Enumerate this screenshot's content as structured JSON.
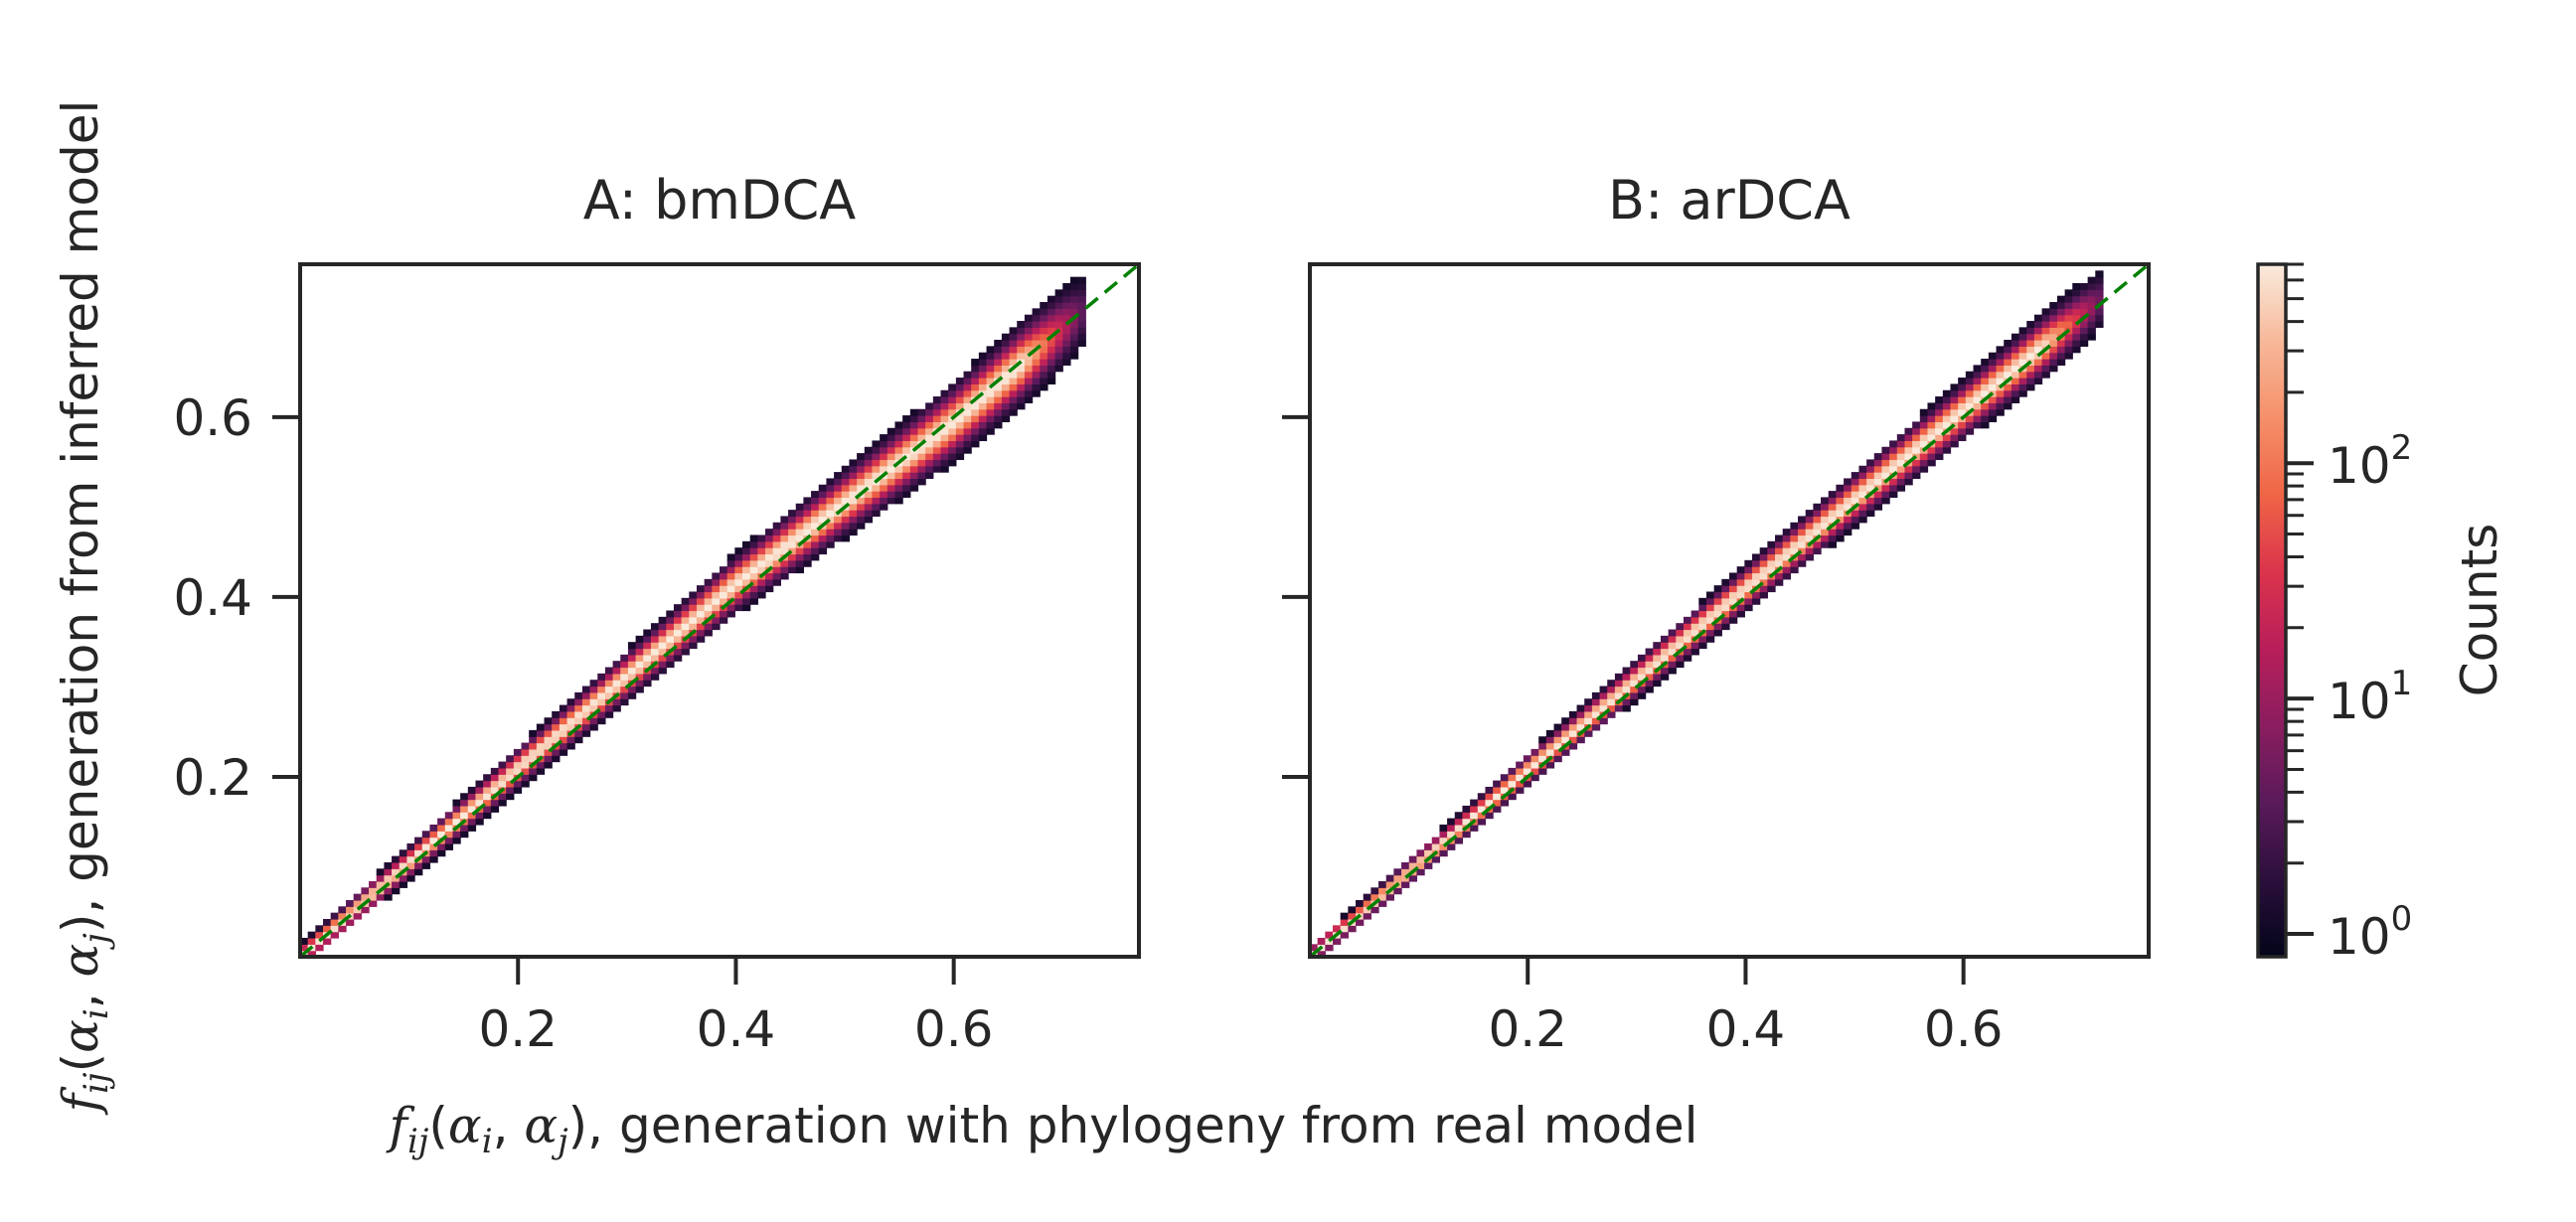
{
  "chart_data": [
    {
      "type": "heatmap",
      "title": "A: bmDCA",
      "xlim": [
        0.0,
        0.77
      ],
      "ylim": [
        0.0,
        0.77
      ],
      "x_ticks": [
        0.2,
        0.4,
        0.6
      ],
      "y_ticks": [
        0.2,
        0.4,
        0.6
      ],
      "x_tick_labels": [
        "0.2",
        "0.4",
        "0.6"
      ],
      "y_tick_labels": [
        "0.2",
        "0.4",
        "0.6"
      ],
      "diagonal": {
        "x": [
          0.0,
          0.77
        ],
        "y": [
          0.0,
          0.77
        ],
        "color": "#008000",
        "style": "dashed"
      },
      "density_band": {
        "extent": [
          0.0,
          0.72
        ],
        "half_width": [
          0.012,
          0.028,
          0.045
        ],
        "offset": [
          [
            0.0,
            0.0
          ],
          [
            0.2,
            0.01
          ],
          [
            0.4,
            0.015
          ],
          [
            0.6,
            -0.005
          ],
          [
            0.72,
            0.0
          ]
        ]
      }
    },
    {
      "type": "heatmap",
      "title": "B: arDCA",
      "xlim": [
        0.0,
        0.77
      ],
      "ylim": [
        0.0,
        0.77
      ],
      "x_ticks": [
        0.2,
        0.4,
        0.6
      ],
      "y_ticks": [
        0.2,
        0.4,
        0.6
      ],
      "x_tick_labels": [
        "0.2",
        "0.4",
        "0.6"
      ],
      "y_tick_labels": [
        "",
        "",
        ""
      ],
      "diagonal": {
        "x": [
          0.0,
          0.77
        ],
        "y": [
          0.0,
          0.77
        ],
        "color": "#008000",
        "style": "dashed"
      },
      "density_band": {
        "extent": [
          0.0,
          0.73
        ],
        "half_width": [
          0.01,
          0.022,
          0.035
        ],
        "offset": [
          [
            0.0,
            0.0
          ],
          [
            0.2,
            0.008
          ],
          [
            0.4,
            0.01
          ],
          [
            0.6,
            0.008
          ],
          [
            0.73,
            0.005
          ]
        ]
      }
    }
  ],
  "shared": {
    "xlabel_main": "f",
    "xlabel_sub": "ij",
    "xlabel_args_open": "(",
    "xlabel_alpha1": "α",
    "xlabel_alpha1_sub": "i",
    "xlabel_comma": ", ",
    "xlabel_alpha2": "α",
    "xlabel_alpha2_sub": "j",
    "xlabel_tail": "), generation with phylogeny from real model",
    "ylabel_main": "f",
    "ylabel_sub": "ij",
    "ylabel_args_open": "(",
    "ylabel_alpha1": "α",
    "ylabel_alpha1_sub": "i",
    "ylabel_comma": ", ",
    "ylabel_alpha2": "α",
    "ylabel_alpha2_sub": "j",
    "ylabel_tail": "), generation from inferred model"
  },
  "colorbar": {
    "label": "Counts",
    "scale": "log",
    "range": [
      0.8,
      700
    ],
    "ticks": [
      1,
      10,
      100
    ],
    "tick_base": "10",
    "tick_exponents": [
      "0",
      "1",
      "2"
    ],
    "colormap": "rocket",
    "colors": [
      "#03051a",
      "#2b0f3b",
      "#5a1a5b",
      "#8a1d5f",
      "#b81e5a",
      "#db344c",
      "#ef6546",
      "#f5906a",
      "#f7b899",
      "#faebdd"
    ]
  }
}
